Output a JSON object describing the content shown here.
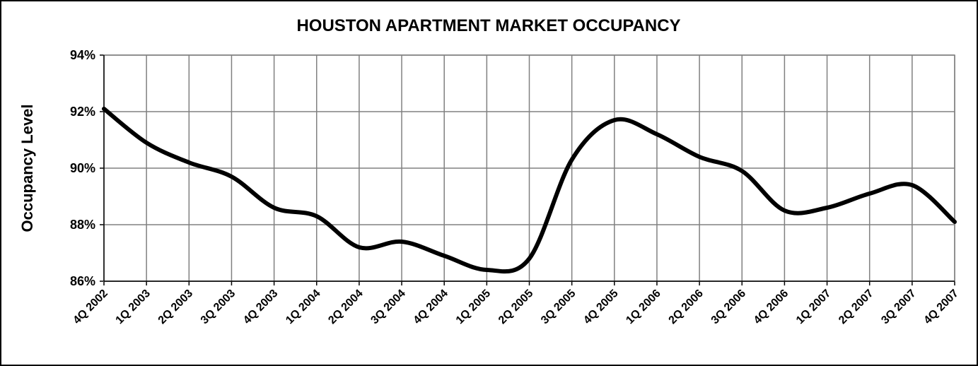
{
  "chart_data": {
    "type": "line",
    "title": "HOUSTON APARTMENT MARKET OCCUPANCY",
    "y_label": "Occupancy Level",
    "categories": [
      "4Q 2002",
      "1Q 2003",
      "2Q 2003",
      "3Q 2003",
      "4Q 2003",
      "1Q 2004",
      "2Q 2004",
      "3Q 2004",
      "4Q 2004",
      "1Q 2005",
      "2Q 2005",
      "3Q 2005",
      "4Q 2005",
      "1Q 2006",
      "2Q 2006",
      "3Q 2006",
      "4Q 2006",
      "1Q 2007",
      "2Q 2007",
      "3Q 2007",
      "4Q 2007"
    ],
    "values": [
      92.1,
      90.9,
      90.2,
      89.7,
      88.6,
      88.3,
      87.2,
      87.4,
      86.9,
      86.4,
      86.8,
      90.3,
      91.7,
      91.2,
      90.4,
      89.9,
      88.5,
      88.6,
      89.1,
      89.4,
      88.1
    ],
    "color": "#000000",
    "smooth": true,
    "ylim": [
      86,
      94
    ],
    "yticks": [
      {
        "value": 86,
        "label": "86%"
      },
      {
        "value": 88,
        "label": "88%"
      },
      {
        "value": 90,
        "label": "90%"
      },
      {
        "value": 92,
        "label": "92%"
      },
      {
        "value": 94,
        "label": "94%"
      }
    ],
    "grid": true
  }
}
